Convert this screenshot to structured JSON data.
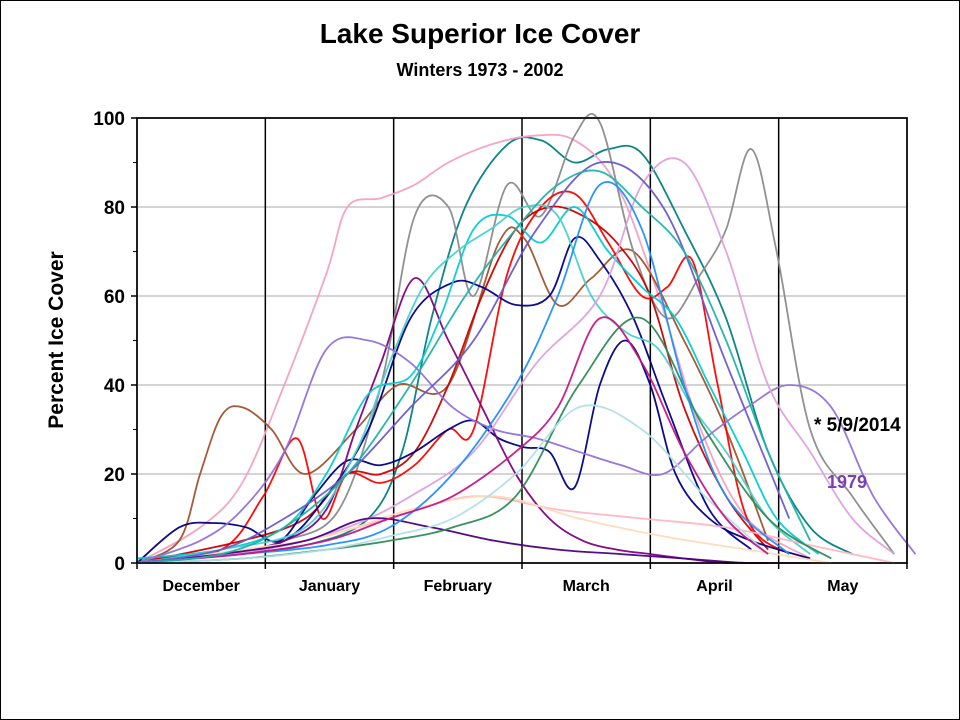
{
  "chart_data": {
    "type": "line",
    "title": "Lake Superior Ice Cover",
    "subtitle": "Winters 1973 - 2002",
    "ylabel": "Percent Ice Cover",
    "xlabel": "",
    "ylim": [
      0,
      100
    ],
    "yticks": [
      "0",
      "20",
      "40",
      "60",
      "80",
      "100"
    ],
    "month_labels": [
      "December",
      "January",
      "February",
      "March",
      "April",
      "May"
    ],
    "grid": true,
    "annotations": [
      {
        "text": "* 5/9/2014",
        "color": "#000000",
        "x": 157,
        "y": 30
      },
      {
        "text": "1979",
        "color": "#7a3fb0",
        "x": 159,
        "y": 18
      }
    ],
    "x_units": "days since December 1",
    "series": [
      {
        "color": "#008080",
        "x": [
          0,
          20,
          40,
          55,
          63,
          70,
          78,
          88,
          96,
          104,
          112,
          120,
          130,
          140,
          150,
          160,
          170
        ],
        "y": [
          1,
          2,
          4,
          10,
          25,
          55,
          80,
          94,
          95,
          90,
          93,
          92,
          75,
          55,
          25,
          8,
          2
        ]
      },
      {
        "color": "#f4a0c0",
        "x": [
          0,
          15,
          25,
          35,
          45,
          50,
          58,
          66,
          74,
          84,
          94,
          104,
          114,
          124,
          134,
          145,
          160
        ],
        "y": [
          0,
          8,
          18,
          40,
          65,
          80,
          82,
          85,
          90,
          94,
          96,
          95,
          85,
          60,
          30,
          10,
          1
        ]
      },
      {
        "color": "#a0522d",
        "x": [
          0,
          10,
          15,
          20,
          25,
          32,
          40,
          52,
          62,
          74,
          86,
          92,
          100,
          108,
          118,
          130,
          140,
          150
        ],
        "y": [
          0,
          5,
          20,
          33,
          35,
          30,
          20,
          30,
          40,
          40,
          72,
          73,
          58,
          64,
          70,
          50,
          30,
          5
        ]
      },
      {
        "color": "#8b8b8b",
        "x": [
          0,
          20,
          35,
          48,
          58,
          66,
          74,
          80,
          88,
          96,
          104,
          110,
          118,
          126,
          134,
          140,
          146,
          152,
          160,
          170,
          180
        ],
        "y": [
          0,
          2,
          5,
          12,
          40,
          78,
          80,
          60,
          85,
          78,
          96,
          99,
          70,
          55,
          65,
          75,
          93,
          70,
          30,
          15,
          2
        ]
      },
      {
        "color": "#ff0000",
        "x": [
          0,
          20,
          30,
          38,
          44,
          50,
          58,
          66,
          74,
          80,
          88,
          96,
          104,
          112,
          120,
          126,
          132,
          138,
          145,
          155
        ],
        "y": [
          0,
          3,
          15,
          28,
          10,
          20,
          18,
          22,
          30,
          30,
          65,
          80,
          83,
          72,
          60,
          62,
          68,
          40,
          10,
          2
        ]
      },
      {
        "color": "#cc0000",
        "x": [
          0,
          25,
          40,
          50,
          58,
          66,
          74,
          82,
          90,
          98,
          106,
          114,
          122,
          130,
          140,
          150
        ],
        "y": [
          0,
          5,
          10,
          20,
          20,
          25,
          40,
          60,
          75,
          80,
          78,
          72,
          60,
          35,
          15,
          3
        ]
      },
      {
        "color": "#000080",
        "x": [
          0,
          10,
          18,
          26,
          34,
          42,
          50,
          58,
          66,
          74,
          80,
          86,
          92,
          98,
          104,
          110,
          116,
          122,
          128,
          136,
          146,
          160
        ],
        "y": [
          0,
          8,
          9,
          8,
          5,
          15,
          23,
          22,
          25,
          30,
          32,
          28,
          26,
          25,
          17,
          40,
          50,
          40,
          20,
          10,
          5,
          1
        ]
      },
      {
        "color": "#00008b",
        "x": [
          0,
          20,
          35,
          45,
          55,
          65,
          75,
          82,
          90,
          98,
          104,
          110,
          118,
          126,
          136,
          146
        ],
        "y": [
          0,
          2,
          5,
          15,
          30,
          55,
          63,
          62,
          58,
          60,
          73,
          68,
          55,
          35,
          12,
          3
        ]
      },
      {
        "color": "#800080",
        "x": [
          0,
          20,
          35,
          45,
          52,
          58,
          66,
          74,
          82,
          90,
          98,
          106,
          114,
          122,
          130,
          140,
          150
        ],
        "y": [
          0,
          2,
          5,
          12,
          30,
          45,
          64,
          50,
          35,
          20,
          10,
          5,
          3,
          2,
          1,
          0,
          0
        ]
      },
      {
        "color": "#00ced1",
        "x": [
          0,
          20,
          35,
          45,
          55,
          65,
          72,
          80,
          88,
          96,
          104,
          112,
          120,
          128,
          136,
          144,
          152,
          162
        ],
        "y": [
          1,
          3,
          8,
          20,
          38,
          42,
          55,
          75,
          78,
          72,
          80,
          70,
          62,
          55,
          40,
          25,
          10,
          2
        ]
      },
      {
        "color": "#48d1cc",
        "x": [
          0,
          20,
          40,
          52,
          60,
          68,
          76,
          84,
          92,
          100,
          108,
          116,
          124,
          132,
          140,
          150,
          160
        ],
        "y": [
          0,
          3,
          8,
          25,
          45,
          62,
          70,
          75,
          80,
          78,
          60,
          52,
          48,
          35,
          25,
          10,
          2
        ]
      },
      {
        "color": "#9370db",
        "x": [
          0,
          15,
          25,
          35,
          45,
          55,
          65,
          75,
          85,
          95,
          105,
          115,
          125,
          135,
          145,
          155,
          165,
          175,
          185
        ],
        "y": [
          0,
          5,
          12,
          25,
          48,
          50,
          45,
          35,
          30,
          28,
          25,
          22,
          20,
          28,
          35,
          40,
          35,
          15,
          2
        ]
      },
      {
        "color": "#dda0dd",
        "x": [
          0,
          30,
          50,
          65,
          80,
          95,
          110,
          120,
          130,
          140,
          150,
          160,
          170,
          180
        ],
        "y": [
          0,
          3,
          8,
          15,
          25,
          45,
          60,
          85,
          90,
          70,
          40,
          25,
          10,
          2
        ]
      },
      {
        "color": "#ffb6c1",
        "x": [
          0,
          20,
          40,
          60,
          80,
          100,
          120,
          140,
          160,
          180
        ],
        "y": [
          0,
          2,
          5,
          10,
          15,
          12,
          10,
          8,
          4,
          0
        ]
      },
      {
        "color": "#ffdab9",
        "x": [
          0,
          25,
          45,
          65,
          85,
          105,
          125,
          145,
          165
        ],
        "y": [
          0,
          3,
          6,
          12,
          15,
          10,
          6,
          3,
          0
        ]
      },
      {
        "color": "#4b0082",
        "x": [
          0,
          20,
          40,
          55,
          70,
          85,
          100,
          115,
          130,
          145,
          160
        ],
        "y": [
          0,
          2,
          5,
          10,
          8,
          5,
          3,
          2,
          1,
          0,
          0
        ]
      },
      {
        "color": "#2e8b57",
        "x": [
          0,
          25,
          45,
          60,
          75,
          90,
          105,
          120,
          135,
          150,
          165
        ],
        "y": [
          0,
          1,
          3,
          5,
          8,
          15,
          40,
          55,
          30,
          10,
          1
        ]
      },
      {
        "color": "#1e90ff",
        "x": [
          0,
          25,
          45,
          60,
          75,
          90,
          100,
          110,
          120,
          130,
          140,
          155
        ],
        "y": [
          0,
          2,
          4,
          8,
          20,
          40,
          60,
          85,
          75,
          40,
          15,
          2
        ]
      },
      {
        "color": "#b0e0e6",
        "x": [
          0,
          25,
          45,
          60,
          75,
          90,
          105,
          120,
          135,
          150
        ],
        "y": [
          0,
          1,
          3,
          6,
          10,
          20,
          35,
          30,
          15,
          2
        ]
      },
      {
        "color": "#c71585",
        "x": [
          0,
          25,
          45,
          60,
          75,
          90,
          100,
          110,
          120,
          130,
          140,
          150
        ],
        "y": [
          0,
          2,
          5,
          10,
          15,
          25,
          35,
          55,
          45,
          25,
          10,
          2
        ]
      },
      {
        "color": "#6a5acd",
        "x": [
          0,
          20,
          35,
          50,
          65,
          80,
          95,
          110,
          125,
          140,
          155
        ],
        "y": [
          0,
          3,
          10,
          20,
          35,
          50,
          75,
          90,
          80,
          45,
          10
        ]
      },
      {
        "color": "#20b2aa",
        "x": [
          0,
          20,
          35,
          50,
          65,
          78,
          90,
          100,
          110,
          120,
          130,
          140,
          150,
          160
        ],
        "y": [
          0,
          2,
          8,
          20,
          40,
          60,
          75,
          85,
          88,
          80,
          70,
          50,
          25,
          5
        ]
      }
    ]
  }
}
